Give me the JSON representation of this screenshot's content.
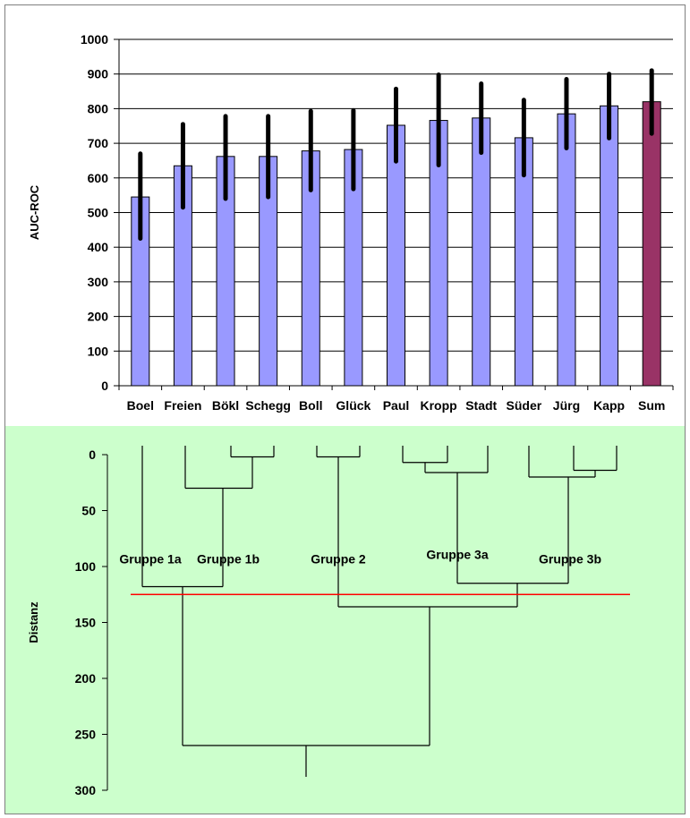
{
  "chart_data": [
    {
      "type": "bar",
      "title": "",
      "xlabel": "",
      "ylabel": "AUC-ROC",
      "ylim": [
        0,
        1000
      ],
      "yticks": [
        0,
        100,
        200,
        300,
        400,
        500,
        600,
        700,
        800,
        900,
        1000
      ],
      "grid": true,
      "legend": "none",
      "categories": [
        "Boel",
        "Freien",
        "Bökl",
        "Schegg",
        "Boll",
        "Glück",
        "Paul",
        "Kropp",
        "Stadt",
        "Süder",
        "Jürg",
        "Kapp",
        "Sum"
      ],
      "values": [
        545,
        635,
        662,
        662,
        678,
        682,
        752,
        766,
        773,
        716,
        785,
        808,
        820
      ],
      "error_low": [
        425,
        515,
        540,
        545,
        565,
        568,
        648,
        637,
        673,
        608,
        686,
        715,
        728
      ],
      "error_high": [
        670,
        755,
        778,
        778,
        793,
        795,
        857,
        898,
        872,
        825,
        885,
        900,
        910
      ],
      "colors": {
        "bar": "#9999ff",
        "highlight_bar": "#993366",
        "error_bar": "#000000",
        "grid": "#000000"
      },
      "highlight_category": "Sum"
    },
    {
      "type": "dendrogram",
      "ylabel": "Distanz",
      "ylim": [
        0,
        300
      ],
      "y_inverted": true,
      "yticks": [
        0,
        50,
        100,
        150,
        200,
        250,
        300
      ],
      "cut_distance": 125,
      "groups": [
        {
          "label": "Gruppe 1a"
        },
        {
          "label": "Gruppe 1b"
        },
        {
          "label": "Gruppe 2"
        },
        {
          "label": "Gruppe 3a"
        },
        {
          "label": "Gruppe 3b"
        }
      ],
      "colors": {
        "background": "#ccffcc",
        "cut_line": "#ff0000",
        "lines": "#000000"
      }
    }
  ]
}
